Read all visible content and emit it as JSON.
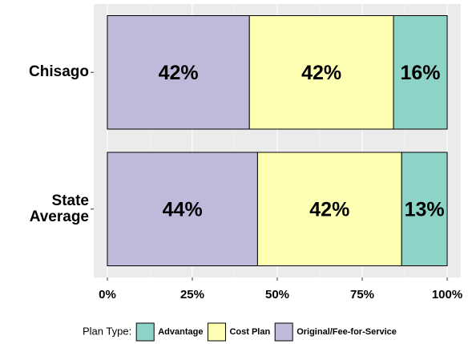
{
  "chart_data": {
    "type": "stacked-bar-horizontal",
    "categories": [
      "Chisago",
      "State Average"
    ],
    "series": [
      {
        "name": "Advantage",
        "color": "#8dd3c7",
        "values": [
          15.8,
          13.4
        ],
        "value_labels": [
          "16%",
          "13%"
        ]
      },
      {
        "name": "Cost Plan",
        "color": "#ffffb3",
        "values": [
          42.4,
          42.4
        ],
        "value_labels": [
          "42%",
          "42%"
        ]
      },
      {
        "name": "Original/Fee-for-Service",
        "color": "#bebada",
        "values": [
          41.8,
          44.2
        ],
        "value_labels": [
          "42%",
          "44%"
        ]
      }
    ],
    "xlim": [
      -4,
      104
    ],
    "xticks": [
      {
        "value": 0,
        "label": "0%"
      },
      {
        "value": 25,
        "label": "25%"
      },
      {
        "value": 50,
        "label": "50%"
      },
      {
        "value": 75,
        "label": "75%"
      },
      {
        "value": 100,
        "label": "100%"
      }
    ],
    "grid": true,
    "legend_title": "Plan Type:",
    "legend": "bottom"
  }
}
